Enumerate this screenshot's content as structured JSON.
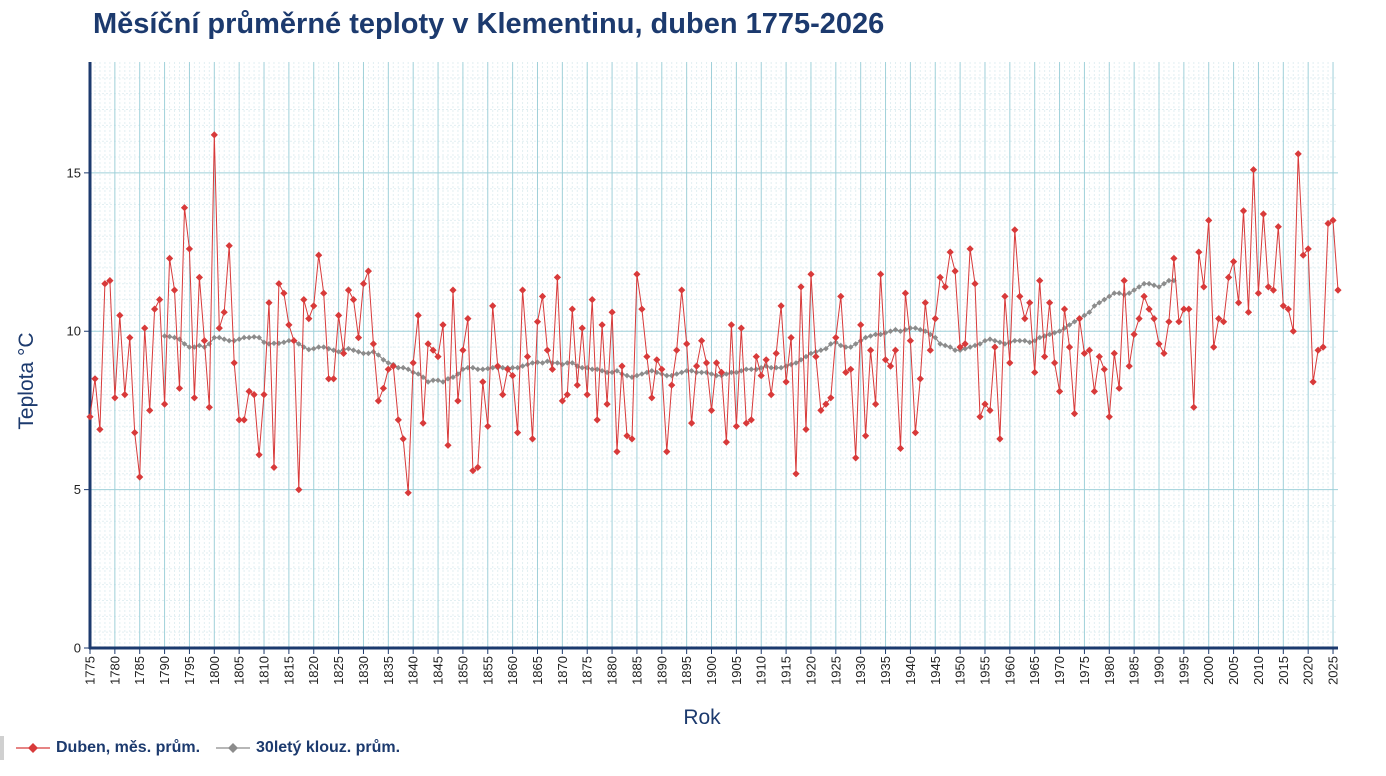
{
  "colors": {
    "title": "#1c3a6e",
    "monthly": "#d83a3a",
    "moving": "#8c8c8c",
    "grid_major": "#9fd0d9",
    "grid_minor": "#e2eff2",
    "axis": "#1c3a6e"
  },
  "chart_data": {
    "type": "line",
    "title": "Měsíční průměrné teploty v Klementinu, duben 1775-2026",
    "xlabel": "Rok",
    "ylabel": "Teplota  °C",
    "xlim": [
      1775,
      2026
    ],
    "ylim": [
      0,
      18.5
    ],
    "y_ticks": [
      0,
      5,
      10,
      15
    ],
    "x_ticks": [
      1775,
      1780,
      1785,
      1790,
      1795,
      1800,
      1805,
      1810,
      1815,
      1820,
      1825,
      1830,
      1835,
      1840,
      1845,
      1850,
      1855,
      1860,
      1865,
      1870,
      1875,
      1880,
      1885,
      1890,
      1895,
      1900,
      1905,
      1910,
      1915,
      1920,
      1925,
      1930,
      1935,
      1940,
      1945,
      1950,
      1955,
      1960,
      1965,
      1970,
      1975,
      1980,
      1985,
      1990,
      1995,
      2000,
      2005,
      2010,
      2015,
      2020,
      2025
    ],
    "grid": true,
    "legend_position": "bottom-left",
    "series": [
      {
        "name": "Duben, měs. prům.",
        "start_year": 1775,
        "values": [
          7.3,
          8.5,
          6.9,
          11.5,
          11.6,
          7.9,
          10.5,
          8.0,
          9.8,
          6.8,
          5.4,
          10.1,
          7.5,
          10.7,
          11.0,
          7.7,
          12.3,
          11.3,
          8.2,
          13.9,
          12.6,
          7.9,
          11.7,
          9.7,
          7.6,
          16.2,
          10.1,
          10.6,
          12.7,
          9.0,
          7.2,
          7.2,
          8.1,
          8.0,
          6.1,
          8.0,
          10.9,
          5.7,
          11.5,
          11.2,
          10.2,
          9.7,
          5.0,
          11.0,
          10.4,
          10.8,
          12.4,
          11.2,
          8.5,
          8.5,
          10.5,
          9.3,
          11.3,
          11.0,
          9.8,
          11.5,
          11.9,
          9.6,
          7.8,
          8.2,
          8.8,
          8.9,
          7.2,
          6.6,
          4.9,
          9.0,
          10.5,
          7.1,
          9.6,
          9.4,
          9.2,
          10.2,
          6.4,
          11.3,
          7.8,
          9.4,
          10.4,
          5.6,
          5.7,
          8.4,
          7.0,
          10.8,
          8.9,
          8.0,
          8.8,
          8.6,
          6.8,
          11.3,
          9.2,
          6.6,
          10.3,
          11.1,
          9.4,
          8.8,
          11.7,
          7.8,
          8.0,
          10.7,
          8.3,
          10.1,
          8.0,
          11.0,
          7.2,
          10.2,
          7.7,
          10.6,
          6.2,
          8.9,
          6.7,
          6.6,
          11.8,
          10.7,
          9.2,
          7.9,
          9.1,
          8.8,
          6.2,
          8.3,
          9.4,
          11.3,
          9.6,
          7.1,
          8.9,
          9.7,
          9.0,
          7.5,
          9.0,
          8.7,
          6.5,
          10.2,
          7.0,
          10.1,
          7.1,
          7.2,
          9.2,
          8.6,
          9.1,
          8.0,
          9.3,
          10.8,
          8.4,
          9.8,
          5.5,
          11.4,
          6.9,
          11.8,
          9.2,
          7.5,
          7.7,
          7.9,
          9.8,
          11.1,
          8.7,
          8.8,
          6.0,
          10.2,
          6.7,
          9.4,
          7.7,
          11.8,
          9.1,
          8.9,
          9.4,
          6.3,
          11.2,
          9.7,
          6.8,
          8.5,
          10.9,
          9.4,
          10.4,
          11.7,
          11.4,
          12.5,
          11.9,
          9.5,
          9.6,
          12.6,
          11.5,
          7.3,
          7.7,
          7.5,
          9.5,
          6.6,
          11.1,
          9.0,
          13.2,
          11.1,
          10.4,
          10.9,
          8.7,
          11.6,
          9.2,
          10.9,
          9.0,
          8.1,
          10.7,
          9.5,
          7.4,
          10.4,
          9.3,
          9.4,
          8.1,
          9.2,
          8.8,
          7.3,
          9.3,
          8.2,
          11.6,
          8.9,
          9.9,
          10.4,
          11.1,
          10.7,
          10.4,
          9.6,
          9.3,
          10.3,
          12.3,
          10.3,
          10.7,
          10.7,
          7.6,
          12.5,
          11.4,
          13.5,
          9.5,
          10.4,
          10.3,
          11.7,
          12.2,
          10.9,
          13.8,
          10.6,
          15.1,
          11.2,
          13.7,
          11.4,
          11.3,
          13.3,
          10.8,
          10.7,
          10.0,
          15.6,
          12.4,
          12.6,
          8.4,
          9.4,
          9.5,
          13.4,
          13.5,
          11.3
        ]
      },
      {
        "name": "30letý klouz. prům.",
        "start_year": 1790,
        "values": [
          9.85,
          9.83,
          9.8,
          9.75,
          9.6,
          9.5,
          9.5,
          9.55,
          9.5,
          9.6,
          9.8,
          9.8,
          9.75,
          9.7,
          9.7,
          9.75,
          9.8,
          9.8,
          9.82,
          9.8,
          9.65,
          9.6,
          9.62,
          9.62,
          9.65,
          9.7,
          9.7,
          9.6,
          9.5,
          9.42,
          9.45,
          9.5,
          9.5,
          9.45,
          9.4,
          9.35,
          9.42,
          9.45,
          9.4,
          9.35,
          9.3,
          9.3,
          9.35,
          9.25,
          9.1,
          9.0,
          8.95,
          8.85,
          8.85,
          8.8,
          8.7,
          8.65,
          8.55,
          8.4,
          8.45,
          8.45,
          8.4,
          8.5,
          8.55,
          8.65,
          8.8,
          8.85,
          8.85,
          8.8,
          8.8,
          8.82,
          8.85,
          8.85,
          8.85,
          8.85,
          8.85,
          8.85,
          8.9,
          8.95,
          9.0,
          9.02,
          9.0,
          9.05,
          9.0,
          9.0,
          8.95,
          9.0,
          9.0,
          8.9,
          8.85,
          8.85,
          8.8,
          8.8,
          8.75,
          8.7,
          8.7,
          8.75,
          8.65,
          8.6,
          8.55,
          8.6,
          8.65,
          8.7,
          8.75,
          8.7,
          8.65,
          8.6,
          8.6,
          8.65,
          8.7,
          8.75,
          8.75,
          8.7,
          8.7,
          8.7,
          8.65,
          8.6,
          8.6,
          8.65,
          8.7,
          8.7,
          8.75,
          8.8,
          8.8,
          8.8,
          8.85,
          8.9,
          8.85,
          8.85,
          8.85,
          8.9,
          8.95,
          9.0,
          9.1,
          9.2,
          9.3,
          9.35,
          9.4,
          9.45,
          9.6,
          9.65,
          9.55,
          9.5,
          9.5,
          9.6,
          9.7,
          9.8,
          9.85,
          9.9,
          9.9,
          9.95,
          10.0,
          10.05,
          10.0,
          10.05,
          10.1,
          10.1,
          10.05,
          10.0,
          9.9,
          9.8,
          9.6,
          9.55,
          9.5,
          9.4,
          9.4,
          9.45,
          9.5,
          9.55,
          9.6,
          9.7,
          9.75,
          9.7,
          9.65,
          9.6,
          9.65,
          9.7,
          9.7,
          9.7,
          9.65,
          9.7,
          9.8,
          9.85,
          9.9,
          9.95,
          10.0,
          10.1,
          10.2,
          10.3,
          10.4,
          10.5,
          10.6,
          10.8,
          10.9,
          11.0,
          11.1,
          11.2,
          11.2,
          11.15,
          11.2,
          11.3,
          11.4,
          11.5,
          11.5,
          11.45,
          11.4,
          11.5,
          11.6,
          11.6
        ]
      }
    ]
  }
}
